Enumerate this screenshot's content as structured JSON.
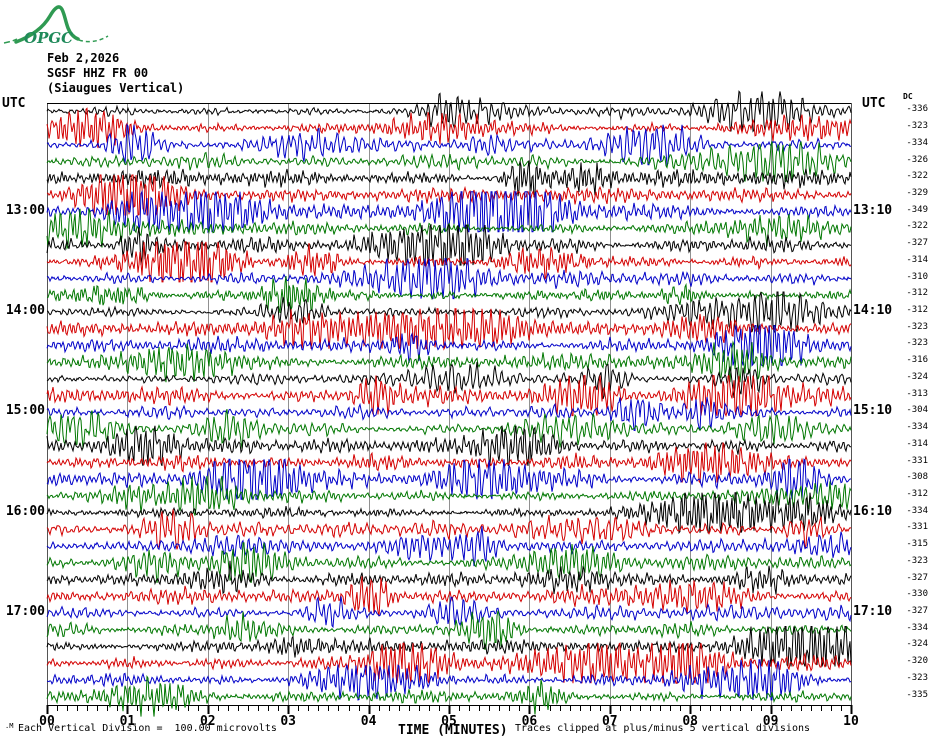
{
  "logo": {
    "text": "OPGC"
  },
  "header": {
    "date": "Feb 2,2026",
    "station": "SGSF HHZ FR 00",
    "station_name": "(Siaugues Vertical)"
  },
  "left_axis": {
    "title": "UTC",
    "hour_labels": [
      "13:00",
      "14:00",
      "15:00",
      "16:00",
      "17:00"
    ]
  },
  "right_axis": {
    "title": "UTC",
    "dc_header": "DC",
    "hour_labels": [
      "13:10",
      "14:10",
      "15:10",
      "16:10",
      "17:10"
    ]
  },
  "x_axis": {
    "title": "TIME (MINUTES)",
    "tick_labels": [
      "00",
      "01",
      "02",
      "03",
      "04",
      "05",
      "06",
      "07",
      "08",
      "09",
      "10"
    ]
  },
  "footer": {
    "scale_note": "Each Vertical Division =  100.00 microvolts",
    "clip_note": "Traces clipped at plus/minus 5 vertical divisions",
    "tiny_mark": ".M"
  },
  "colors": {
    "trace_black": "#000000",
    "trace_red": "#d40000",
    "trace_blue": "#0000c8",
    "trace_green": "#007700",
    "grid": "#909090",
    "border": "#000000",
    "logo_green": "#2f9a52",
    "logo_text": "#1f8a5a"
  },
  "chart_data": {
    "type": "line",
    "subtype": "seismogram-helicorder",
    "title": "SGSF HHZ FR 00 (Siaugues Vertical) Feb 2,2026",
    "xlabel": "TIME (MINUTES)",
    "xlim": [
      0,
      10
    ],
    "x_ticks": [
      "00",
      "01",
      "02",
      "03",
      "04",
      "05",
      "06",
      "07",
      "08",
      "09",
      "10"
    ],
    "minor_subdivisions_per_minute": 8,
    "rows": 36,
    "minutes_per_row": 10,
    "labeled_row_indices": [
      6,
      12,
      18,
      24,
      30
    ],
    "hour_labels_left": [
      "13:00",
      "14:00",
      "15:00",
      "16:00",
      "17:00"
    ],
    "hour_labels_right": [
      "13:10",
      "14:10",
      "15:10",
      "16:10",
      "17:10"
    ],
    "trace_color_cycle": [
      "#000000",
      "#d40000",
      "#0000c8",
      "#007700"
    ],
    "dc_offsets": [
      -336,
      -323,
      -334,
      -326,
      -322,
      -329,
      -349,
      -322,
      -327,
      -314,
      -310,
      -312,
      -312,
      -323,
      -323,
      -316,
      -324,
      -313,
      -304,
      -334,
      -314,
      -331,
      -308,
      -312,
      -334,
      -331,
      -315,
      -323,
      -327,
      -330,
      -327,
      -334,
      -324,
      -320,
      -323,
      -335
    ],
    "scale_note": "Each Vertical Division =  100.00 microvolts",
    "clip_note": "Traces clipped at plus/minus 5 vertical divisions"
  }
}
